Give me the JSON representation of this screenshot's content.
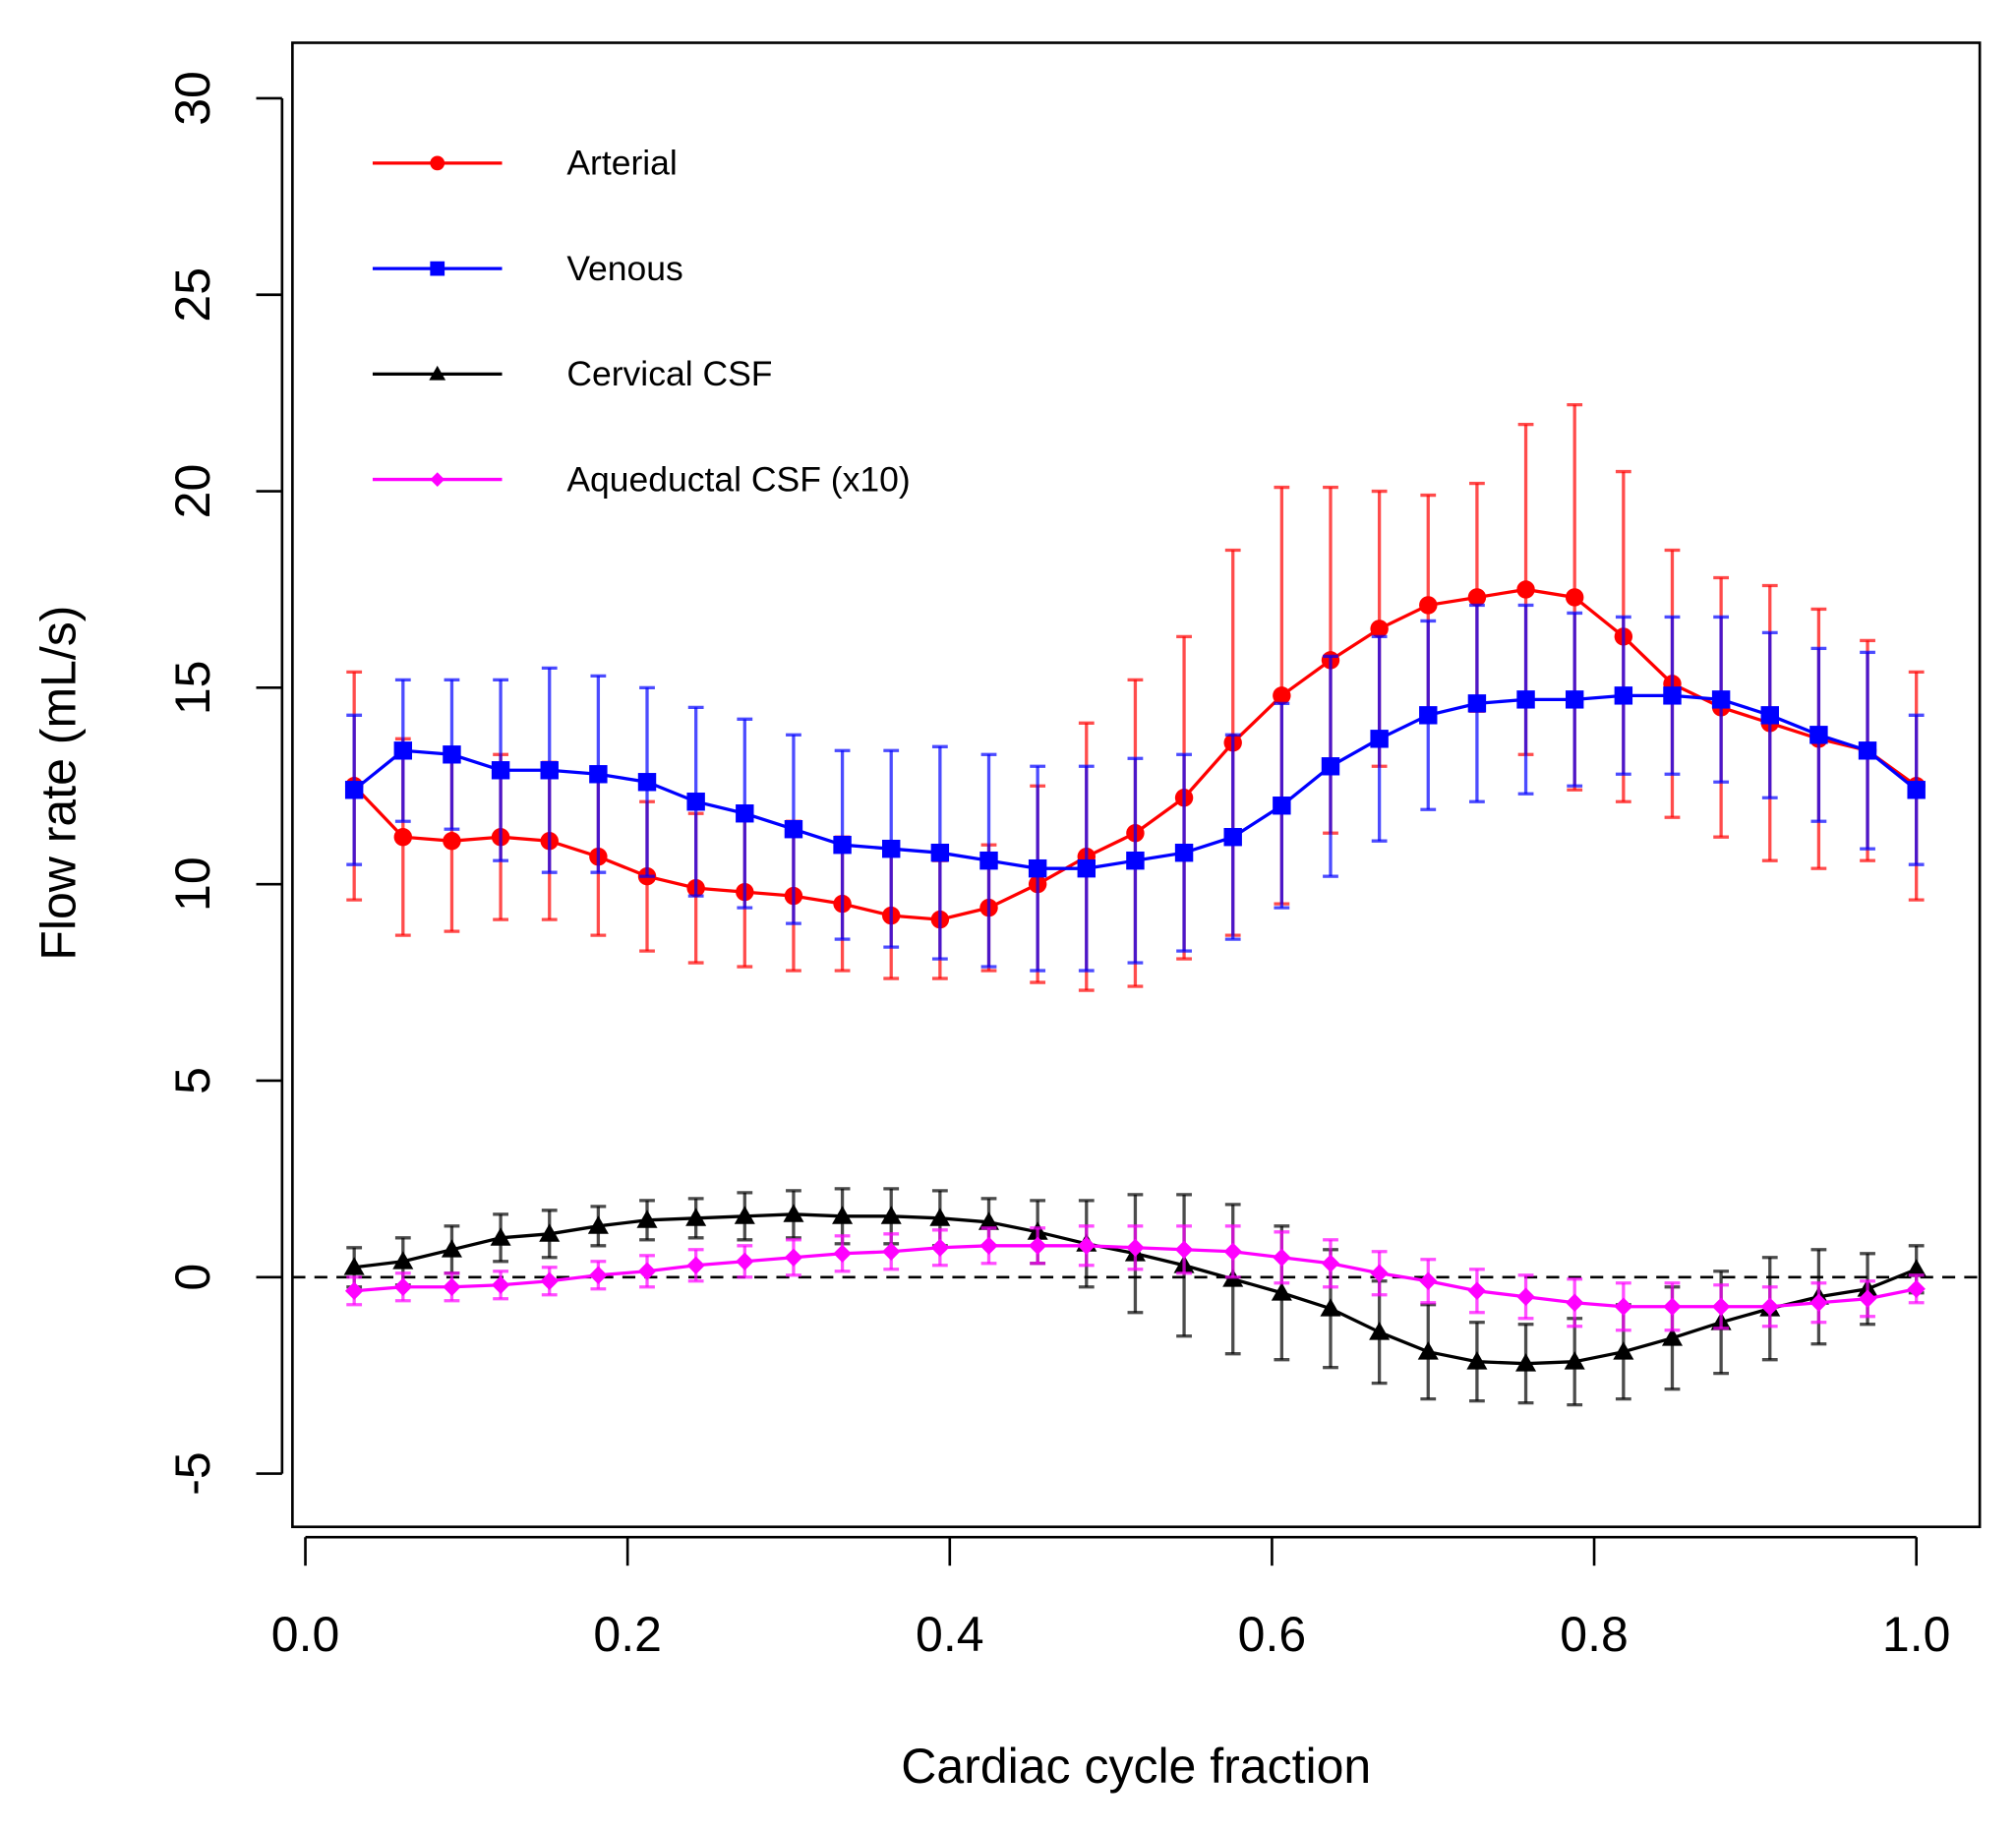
{
  "chart_data": {
    "type": "line",
    "title": "",
    "xlabel": "Cardiac cycle fraction",
    "ylabel": "Flow rate (mL/s)",
    "xlim": [
      -0.01,
      1.04
    ],
    "ylim": [
      -6.3,
      30.5
    ],
    "xticks": [
      "0.0",
      "0.2",
      "0.4",
      "0.6",
      "0.8",
      "1.0"
    ],
    "yticks": [
      "-5",
      "0",
      "5",
      "10",
      "15",
      "20",
      "25",
      "30"
    ],
    "reference_line": {
      "y": 0,
      "style": "dashed"
    },
    "legend_position": "top-left",
    "x_points_per_cycle": 33,
    "series": [
      {
        "name": "Arterial",
        "color": "#ff0000",
        "marker": "circle",
        "values": [
          12.5,
          11.2,
          11.1,
          11.2,
          11.1,
          10.7,
          10.2,
          9.9,
          9.8,
          9.7,
          9.5,
          9.2,
          9.1,
          9.4,
          10.0,
          10.7,
          11.3,
          12.2,
          13.6,
          14.8,
          15.7,
          16.5,
          17.1,
          17.3,
          17.5,
          17.3,
          16.3,
          15.1,
          14.5,
          14.1,
          13.7,
          13.4,
          12.5
        ],
        "errors": [
          2.9,
          2.5,
          2.3,
          2.1,
          2.0,
          2.0,
          1.9,
          1.9,
          1.9,
          1.9,
          1.7,
          1.6,
          1.5,
          1.6,
          2.5,
          3.4,
          3.9,
          4.1,
          4.9,
          5.3,
          4.4,
          3.5,
          2.8,
          2.9,
          4.2,
          4.9,
          4.2,
          3.4,
          3.3,
          3.5,
          3.3,
          2.8,
          2.9
        ]
      },
      {
        "name": "Venous",
        "color": "#0000ff",
        "marker": "square",
        "values": [
          12.4,
          13.4,
          13.3,
          12.9,
          12.9,
          12.8,
          12.6,
          12.1,
          11.8,
          11.4,
          11.0,
          10.9,
          10.8,
          10.6,
          10.4,
          10.4,
          10.6,
          10.8,
          11.2,
          12.0,
          13.0,
          13.7,
          14.3,
          14.6,
          14.7,
          14.7,
          14.8,
          14.8,
          14.7,
          14.3,
          13.8,
          13.4,
          12.4
        ],
        "errors": [
          1.9,
          1.8,
          1.9,
          2.3,
          2.6,
          2.5,
          2.4,
          2.4,
          2.4,
          2.4,
          2.4,
          2.5,
          2.7,
          2.7,
          2.6,
          2.6,
          2.6,
          2.5,
          2.6,
          2.6,
          2.8,
          2.6,
          2.4,
          2.5,
          2.4,
          2.2,
          2.0,
          2.0,
          2.1,
          2.1,
          2.2,
          2.5,
          1.9
        ]
      },
      {
        "name": "Cervical CSF",
        "color": "#000000",
        "marker": "triangle",
        "values": [
          0.25,
          0.4,
          0.7,
          1.0,
          1.1,
          1.3,
          1.45,
          1.5,
          1.55,
          1.6,
          1.55,
          1.55,
          1.5,
          1.4,
          1.15,
          0.85,
          0.6,
          0.3,
          -0.05,
          -0.4,
          -0.8,
          -1.4,
          -1.9,
          -2.15,
          -2.2,
          -2.15,
          -1.9,
          -1.55,
          -1.15,
          -0.8,
          -0.5,
          -0.3,
          0.2
        ],
        "errors": [
          0.5,
          0.6,
          0.6,
          0.6,
          0.6,
          0.5,
          0.5,
          0.5,
          0.6,
          0.6,
          0.7,
          0.7,
          0.7,
          0.6,
          0.8,
          1.1,
          1.5,
          1.8,
          1.9,
          1.7,
          1.5,
          1.3,
          1.2,
          1.0,
          1.0,
          1.1,
          1.2,
          1.3,
          1.3,
          1.3,
          1.2,
          0.9,
          0.6
        ]
      },
      {
        "name": "Aqueductal CSF (x10)",
        "color": "#ff00ff",
        "marker": "diamond",
        "values": [
          -0.35,
          -0.25,
          -0.25,
          -0.2,
          -0.1,
          0.05,
          0.15,
          0.3,
          0.4,
          0.5,
          0.6,
          0.65,
          0.75,
          0.8,
          0.8,
          0.8,
          0.75,
          0.7,
          0.65,
          0.5,
          0.35,
          0.1,
          -0.1,
          -0.35,
          -0.5,
          -0.65,
          -0.75,
          -0.75,
          -0.75,
          -0.75,
          -0.65,
          -0.55,
          -0.3
        ],
        "errors": [
          0.35,
          0.35,
          0.35,
          0.35,
          0.35,
          0.35,
          0.4,
          0.4,
          0.4,
          0.45,
          0.45,
          0.45,
          0.45,
          0.45,
          0.45,
          0.5,
          0.55,
          0.6,
          0.65,
          0.65,
          0.6,
          0.55,
          0.55,
          0.55,
          0.55,
          0.6,
          0.6,
          0.6,
          0.55,
          0.5,
          0.5,
          0.45,
          0.35
        ]
      }
    ]
  }
}
